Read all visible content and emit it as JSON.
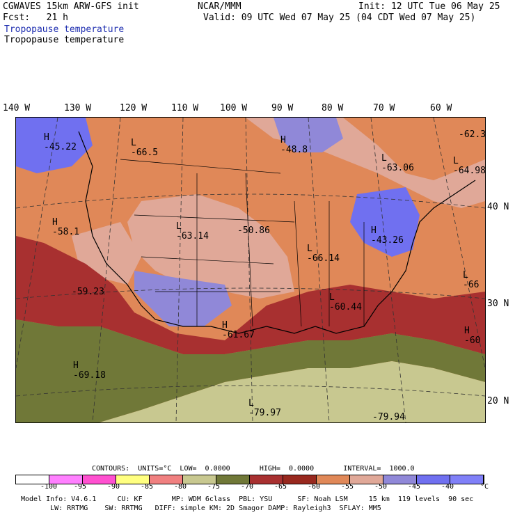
{
  "header": {
    "model_title": "CGWAVES 15km ARW-GFS init",
    "forecast": "Fcst:   21 h",
    "field_title_blue": "Tropopause temperature",
    "field_title_black": "Tropopause temperature",
    "center": "NCAR/MMM",
    "init": "Init: 12 UTC Tue 06 May 25",
    "valid": "Valid: 09 UTC Wed 07 May 25 (04 CDT Wed 07 May 25)"
  },
  "lon_labels": [
    "140 W",
    "130 W",
    "120 W",
    "110 W",
    "100 W",
    "90 W",
    "80 W",
    "70 W",
    "60 W"
  ],
  "lat_labels": [
    "40 N",
    "30 N",
    "20 N"
  ],
  "centers": [
    {
      "type": "H",
      "value": "-45.22"
    },
    {
      "type": "L",
      "value": "-66.5"
    },
    {
      "type": "H",
      "value": "-48.8"
    },
    {
      "type": "L",
      "value": "-63.06"
    },
    {
      "type": "L",
      "value": "-64.98"
    },
    {
      "type": "",
      "value": "-62.3"
    },
    {
      "type": "H",
      "value": "-58.1"
    },
    {
      "type": "L",
      "value": "-63.14"
    },
    {
      "type": "",
      "value": "-50.86"
    },
    {
      "type": "H",
      "value": "-43.26"
    },
    {
      "type": "L",
      "value": "-66.14"
    },
    {
      "type": "L",
      "value": "-66"
    },
    {
      "type": "",
      "value": "-59.23"
    },
    {
      "type": "L",
      "value": "-60.44"
    },
    {
      "type": "H",
      "value": "-61.67"
    },
    {
      "type": "H",
      "value": "-60"
    },
    {
      "type": "H",
      "value": "-69.18"
    },
    {
      "type": "L",
      "value": "-79.97"
    },
    {
      "type": "",
      "value": "-79.94"
    }
  ],
  "contours_line": "CONTOURS:  UNITS=°C  LOW=  0.0000       HIGH=  0.0000       INTERVAL=  1000.0",
  "colorbar": {
    "colors": [
      "#ffffff",
      "#ff80ff",
      "#ff50d0",
      "#ffff80",
      "#f08080",
      "#c8c890",
      "#707838",
      "#a83030",
      "#98281e",
      "#e08858",
      "#e0a898",
      "#9088d8",
      "#7070f0",
      "#8080f8"
    ],
    "labels": [
      "-100",
      "-95",
      "-90",
      "-85",
      "-80",
      "-75",
      "-70",
      "-65",
      "-60",
      "-55",
      "-50",
      "-45",
      "-40",
      "°C"
    ]
  },
  "footer": {
    "line1": "Model Info: V4.6.1     CU: KF       MP: WDM 6class  PBL: YSU      SF: Noah LSM     15 km  119 levels  90 sec",
    "line2": "       LW: RRTMG    SW: RRTMG   DIFF: simple KM: 2D Smagor DAMP: Rayleigh3  SFLAY: MM5"
  },
  "palette": {
    "orange": "#e08858",
    "pink": "#e0a898",
    "lavender": "#9088d8",
    "blue": "#7070f0",
    "darkred": "#a83030",
    "olive": "#707838",
    "khaki": "#c8c890",
    "salmon": "#f08080"
  }
}
